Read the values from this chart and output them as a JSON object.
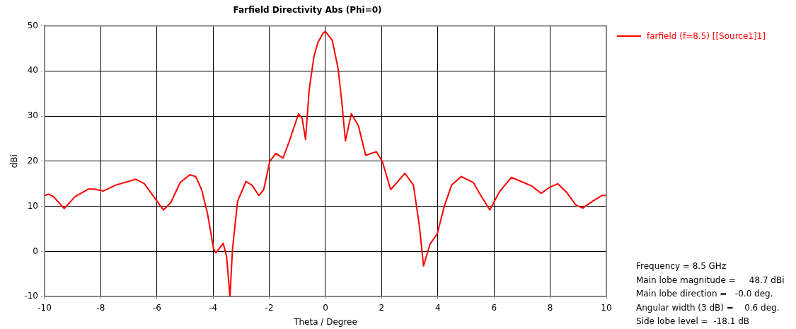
{
  "chart_data": {
    "type": "line",
    "title": "Farfield Directivity Abs (Phi=0)",
    "xlabel": "Theta / Degree",
    "ylabel": "dBi",
    "xlim": [
      -10,
      10
    ],
    "xticks": [
      -10,
      -8,
      -6,
      -4,
      -2,
      0,
      2,
      4,
      6,
      8,
      10
    ],
    "ylim": [
      -10,
      50
    ],
    "yticks": [
      -10,
      0,
      10,
      20,
      30,
      40,
      50
    ],
    "grid": true,
    "legend": "top right",
    "line_style": "solid",
    "marker": "none",
    "series": [
      {
        "name": "farfield (f=8.5) [[Source1]1]",
        "color": "#ff0000",
        "x": [
          -10,
          -9.86,
          -9.69,
          -9.3,
          -8.92,
          -8.45,
          -8.24,
          -7.9,
          -7.47,
          -7.13,
          -6.75,
          -6.45,
          -6.11,
          -5.77,
          -5.51,
          -5.17,
          -4.83,
          -4.62,
          -4.41,
          -4.2,
          -3.98,
          -3.9,
          -3.64,
          -3.52,
          -3.4,
          -3.31,
          -3.13,
          -2.83,
          -2.62,
          -2.37,
          -2.2,
          -1.98,
          -1.77,
          -1.51,
          -1.3,
          -0.96,
          -0.83,
          -0.71,
          -0.58,
          -0.41,
          -0.27,
          -0.07,
          0,
          0.24,
          0.45,
          0.58,
          0.71,
          0.92,
          1.17,
          1.43,
          1.81,
          2.02,
          2.32,
          2.83,
          3.13,
          3.34,
          3.49,
          3.72,
          3.98,
          4.23,
          4.49,
          4.83,
          5.26,
          5.51,
          5.85,
          6.19,
          6.62,
          7.04,
          7.34,
          7.68,
          7.98,
          8.27,
          8.57,
          8.91,
          9.16,
          9.5,
          9.84,
          10
        ],
        "values": [
          12.4,
          12.7,
          12.2,
          9.5,
          12.1,
          13.8,
          13.8,
          13.4,
          14.7,
          15.3,
          16.0,
          15.0,
          12.1,
          9.2,
          10.8,
          15.3,
          17.0,
          16.6,
          13.7,
          8.4,
          0.5,
          -0.3,
          1.8,
          -1.1,
          -10,
          0.5,
          11.1,
          15.5,
          14.7,
          12.4,
          13.7,
          20.0,
          21.7,
          20.7,
          24.2,
          30.5,
          29.5,
          24.8,
          35.8,
          43.2,
          46.3,
          48.5,
          48.7,
          46.8,
          40.5,
          33.2,
          24.5,
          30.5,
          27.9,
          21.3,
          22.1,
          20.0,
          13.7,
          17.3,
          14.7,
          5.8,
          -3.2,
          1.6,
          3.9,
          10.0,
          14.7,
          16.6,
          15.3,
          12.6,
          9.2,
          13.2,
          16.4,
          15.3,
          14.5,
          12.9,
          14.2,
          15.0,
          13.2,
          10.3,
          9.6,
          11.1,
          12.4,
          12.4
        ]
      }
    ],
    "annotations": [
      "Frequency = 8.5 GHz",
      "Main lobe magnitude =     48.7 dBi",
      "Main lobe direction =   -0.0 deg.",
      "Angular width (3 dB) =    0.6 deg.",
      "Side lobe level =  -18.1 dB"
    ]
  }
}
